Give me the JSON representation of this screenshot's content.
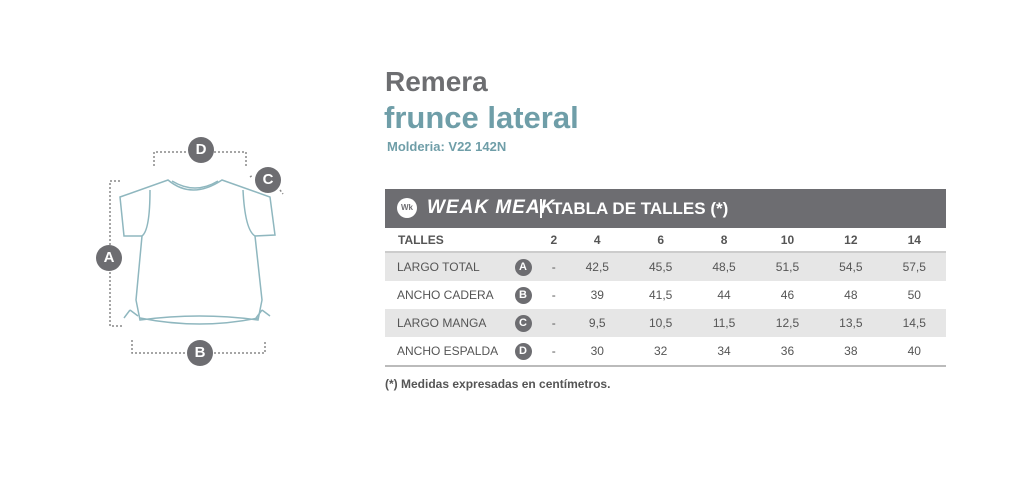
{
  "title": "Remera",
  "subtitle": "frunce lateral",
  "molderia": "Molderia: V22 142N",
  "brand": {
    "logo": "Wk",
    "name": "WEAK MEAK"
  },
  "table_title": "TABLA DE TALLES (*)",
  "table": {
    "header": "TALLES",
    "sizes": [
      "2",
      "4",
      "6",
      "8",
      "10",
      "12",
      "14"
    ],
    "rows": [
      {
        "label": "LARGO TOTAL",
        "badge": "A",
        "values": [
          "-",
          "42,5",
          "45,5",
          "48,5",
          "51,5",
          "54,5",
          "57,5"
        ]
      },
      {
        "label": "ANCHO CADERA",
        "badge": "B",
        "values": [
          "-",
          "39",
          "41,5",
          "44",
          "46",
          "48",
          "50"
        ]
      },
      {
        "label": "LARGO MANGA",
        "badge": "C",
        "values": [
          "-",
          "9,5",
          "10,5",
          "11,5",
          "12,5",
          "13,5",
          "14,5"
        ]
      },
      {
        "label": "ANCHO ESPALDA",
        "badge": "D",
        "values": [
          "-",
          "30",
          "32",
          "34",
          "36",
          "38",
          "40"
        ]
      }
    ]
  },
  "footnote": "(*) Medidas expresadas en centímetros.",
  "diagram": {
    "labels": {
      "a": "A",
      "b": "B",
      "c": "C",
      "d": "D"
    }
  },
  "colors": {
    "gray": "#6d6e71",
    "teal": "#6f9ea8",
    "row_shade": "#e6e6e6"
  }
}
